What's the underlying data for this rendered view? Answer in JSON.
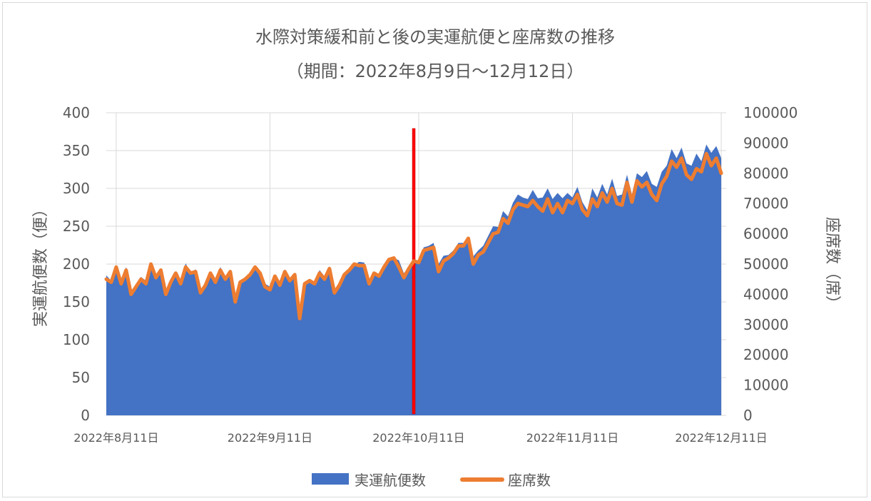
{
  "chart_data": {
    "type": "area+line",
    "title": "水際対策緩和前と後の実運航便と座席数の推移",
    "subtitle": "（期間：2022年8月9日～12月12日）",
    "ylabel_left": "実運航便数（便）",
    "ylabel_right": "座席数（席）",
    "ylim_left": [
      0,
      400
    ],
    "ylim_right": [
      0,
      100000
    ],
    "yticks_left": [
      "400",
      "350",
      "300",
      "250",
      "200",
      "150",
      "100",
      "50",
      "0"
    ],
    "yticks_right": [
      "100000",
      "90000",
      "80000",
      "70000",
      "60000",
      "50000",
      "40000",
      "30000",
      "20000",
      "10000",
      "0"
    ],
    "x_start": "2022-08-09",
    "x_end": "2022-12-12",
    "xticks": [
      {
        "date": "2022-08-11",
        "label": "2022年8月11日"
      },
      {
        "date": "2022-09-11",
        "label": "2022年9月11日"
      },
      {
        "date": "2022-10-11",
        "label": "2022年10月11日"
      },
      {
        "date": "2022-11-11",
        "label": "2022年11月11日"
      },
      {
        "date": "2022-12-11",
        "label": "2022年12月11日"
      }
    ],
    "marker_date": "2022-10-10",
    "grid": true,
    "legend_position": "bottom",
    "colors": {
      "flights": "#4472c4",
      "seats": "#ed7d31",
      "marker": "#ff0000",
      "grid": "#d9d9d9",
      "text": "#595959"
    },
    "series": [
      {
        "name": "実運航便数",
        "axis": "left",
        "kind": "area",
        "values": [
          185,
          178,
          198,
          176,
          196,
          165,
          172,
          183,
          178,
          200,
          184,
          193,
          162,
          178,
          189,
          176,
          201,
          188,
          193,
          163,
          174,
          189,
          177,
          196,
          183,
          191,
          151,
          177,
          181,
          187,
          198,
          190,
          174,
          170,
          186,
          175,
          193,
          181,
          188,
          130,
          176,
          180,
          176,
          192,
          184,
          197,
          166,
          175,
          187,
          193,
          199,
          203,
          202,
          178,
          189,
          184,
          197,
          207,
          208,
          205,
          188,
          195,
          207,
          204,
          222,
          224,
          228,
          200,
          211,
          212,
          218,
          228,
          228,
          235,
          210,
          218,
          224,
          237,
          250,
          249,
          270,
          263,
          281,
          292,
          288,
          286,
          298,
          287,
          288,
          300,
          286,
          294,
          287,
          294,
          288,
          302,
          282,
          271,
          300,
          288,
          306,
          292,
          313,
          290,
          292,
          318,
          292,
          320,
          315,
          323,
          306,
          302,
          322,
          330,
          352,
          340,
          354,
          333,
          330,
          346,
          336,
          358,
          347,
          356,
          340
        ]
      },
      {
        "name": "座席数",
        "axis": "right",
        "kind": "line",
        "values": [
          45000,
          44000,
          49000,
          43500,
          48000,
          40000,
          42500,
          45000,
          43500,
          50000,
          45500,
          48000,
          40000,
          44000,
          47000,
          43500,
          49000,
          47000,
          47500,
          40500,
          43000,
          47000,
          44000,
          48000,
          45000,
          47500,
          37500,
          44000,
          45000,
          46500,
          49000,
          47000,
          42500,
          41500,
          46000,
          43000,
          47500,
          44500,
          46500,
          32000,
          43500,
          44500,
          43500,
          47000,
          45000,
          48500,
          40500,
          43000,
          46500,
          48000,
          50000,
          49500,
          49500,
          43500,
          47000,
          46000,
          49000,
          51500,
          52000,
          49000,
          45500,
          48500,
          51000,
          50500,
          54500,
          55000,
          55500,
          47500,
          51000,
          52000,
          53500,
          56000,
          56000,
          58500,
          50000,
          53000,
          54000,
          57000,
          60000,
          60500,
          65000,
          63500,
          68000,
          70000,
          69500,
          69000,
          71000,
          69000,
          67500,
          71500,
          67000,
          70000,
          67000,
          71000,
          70000,
          73000,
          68000,
          66000,
          71500,
          69000,
          73500,
          70500,
          75000,
          70000,
          69500,
          77000,
          70500,
          77500,
          75500,
          77000,
          73000,
          71000,
          76500,
          79000,
          84000,
          82000,
          85000,
          79500,
          78000,
          81500,
          80500,
          86500,
          82500,
          85000,
          80000
        ]
      }
    ]
  }
}
